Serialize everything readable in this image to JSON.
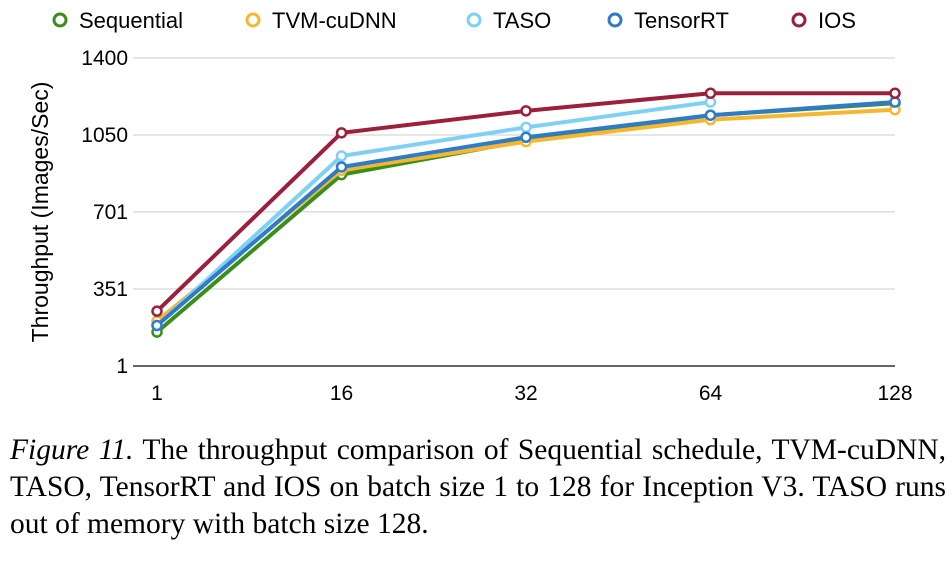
{
  "chart_data": {
    "type": "line",
    "categories": [
      "1",
      "16",
      "32",
      "64",
      "128"
    ],
    "ylabel": "Throughput (Images/Sec)",
    "xlabel": "",
    "ylim": [
      1,
      1400
    ],
    "yticks": [
      "1",
      "351",
      "701",
      "1050",
      "1400"
    ],
    "ytick_values": [
      1,
      351,
      701,
      1050,
      1400
    ],
    "grid": "horizontal",
    "legend_position": "top",
    "series": [
      {
        "name": "Sequential",
        "color": "#3a8f1c",
        "values": [
          155,
          870,
          1025,
          1140,
          1195
        ]
      },
      {
        "name": "TVM-cuDNN",
        "color": "#f5b731",
        "values": [
          205,
          890,
          1020,
          1120,
          1165
        ]
      },
      {
        "name": "TASO",
        "color": "#7fd0f5",
        "values": [
          185,
          955,
          1085,
          1200,
          null
        ]
      },
      {
        "name": "TensorRT",
        "color": "#2f7bc8",
        "values": [
          185,
          905,
          1040,
          1140,
          1200
        ]
      },
      {
        "name": "IOS",
        "color": "#9c1f3c",
        "values": [
          250,
          1060,
          1160,
          1240,
          1240
        ]
      }
    ]
  },
  "caption": {
    "label": "Figure 11.",
    "text": " The throughput comparison of Sequential schedule, TVM-cuDNN, TASO, TensorRT and IOS on batch size 1 to 128 for Inception V3. TASO runs out of memory with batch size 128."
  }
}
